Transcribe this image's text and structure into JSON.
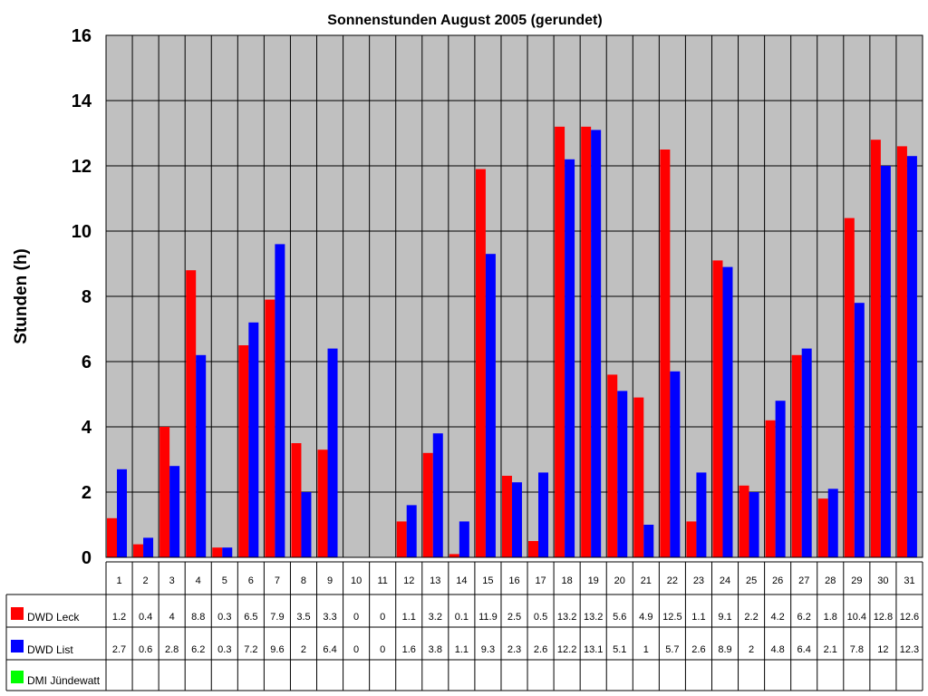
{
  "chart_data": {
    "type": "bar",
    "title": "Sonnenstunden August 2005 (gerundet)",
    "ylabel": "Stunden (h)",
    "xlabel": "",
    "ylim": [
      0,
      16
    ],
    "yticks": [
      0,
      2,
      4,
      6,
      8,
      10,
      12,
      14,
      16
    ],
    "grid": true,
    "legend": "data-table-left",
    "categories": [
      "1",
      "2",
      "3",
      "4",
      "5",
      "6",
      "7",
      "8",
      "9",
      "10",
      "11",
      "12",
      "13",
      "14",
      "15",
      "16",
      "17",
      "18",
      "19",
      "20",
      "21",
      "22",
      "23",
      "24",
      "25",
      "26",
      "27",
      "28",
      "29",
      "30",
      "31"
    ],
    "series": [
      {
        "name": "DWD Leck",
        "color": "#ff0000",
        "values": [
          1.2,
          0.4,
          4,
          8.8,
          0.3,
          6.5,
          7.9,
          3.5,
          3.3,
          0,
          0,
          1.1,
          3.2,
          0.1,
          11.9,
          2.5,
          0.5,
          13.2,
          13.2,
          5.6,
          4.9,
          12.5,
          1.1,
          9.1,
          2.2,
          4.2,
          6.2,
          1.8,
          10.4,
          12.8,
          12.6
        ]
      },
      {
        "name": "DWD List",
        "color": "#0000ff",
        "values": [
          2.7,
          0.6,
          2.8,
          6.2,
          0.3,
          7.2,
          9.6,
          2,
          6.4,
          0,
          0,
          1.6,
          3.8,
          1.1,
          9.3,
          2.3,
          2.6,
          12.2,
          13.1,
          5.1,
          1,
          5.7,
          2.6,
          8.9,
          2,
          4.8,
          6.4,
          2.1,
          7.8,
          12,
          12.3
        ]
      },
      {
        "name": "DMI Jündewatt",
        "color": "#00ff00",
        "values": [
          null,
          null,
          null,
          null,
          null,
          null,
          null,
          null,
          null,
          null,
          null,
          null,
          null,
          null,
          null,
          null,
          null,
          null,
          null,
          null,
          null,
          null,
          null,
          null,
          null,
          null,
          null,
          null,
          null,
          null,
          null
        ]
      }
    ],
    "colors": {
      "plot_background": "#c0c0c0",
      "grid": "#000000"
    }
  }
}
